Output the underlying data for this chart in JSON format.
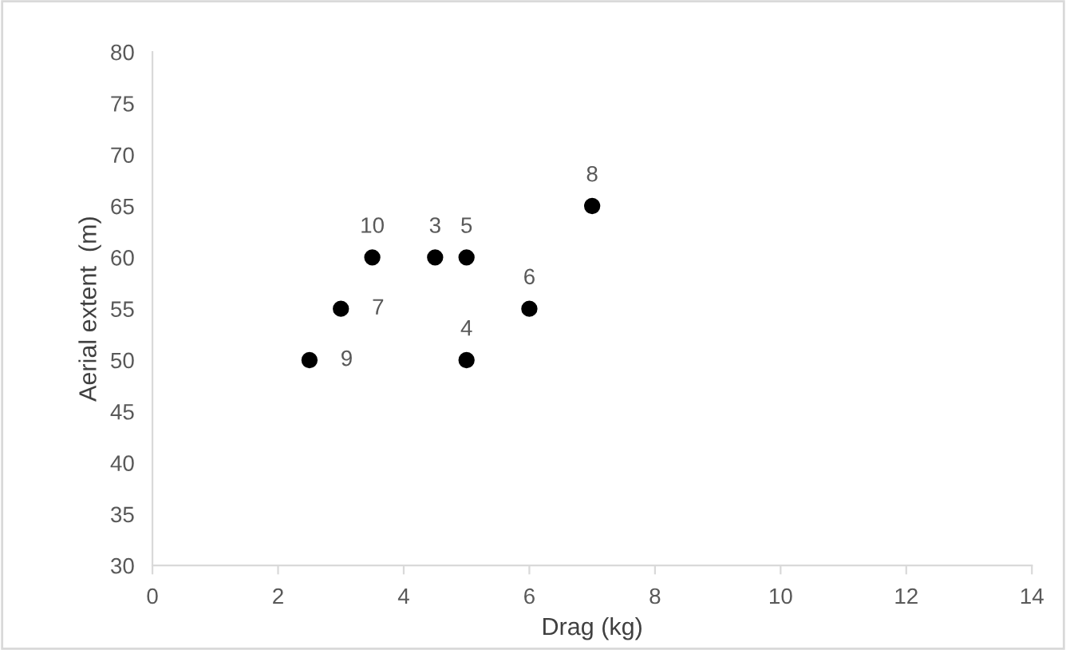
{
  "chart_data": {
    "type": "scatter",
    "xlabel": "Drag (kg)",
    "ylabel": "Aerial extent  (m)",
    "x": [
      4.5,
      5,
      5,
      6,
      3,
      7,
      2.5,
      3.5
    ],
    "values": [
      60,
      60,
      50,
      55,
      55,
      65,
      50,
      60
    ],
    "color": "#000000",
    "marker": "circle",
    "grid": false,
    "xlim": [
      0,
      14
    ],
    "xticks": [
      0,
      2,
      4,
      6,
      8,
      10,
      12,
      14
    ],
    "ylim": [
      30,
      80
    ],
    "yticks": [
      30,
      35,
      40,
      45,
      50,
      55,
      60,
      65,
      70,
      75,
      80
    ],
    "annotations": [
      {
        "text": "3",
        "x": 4.5,
        "y": 60
      },
      {
        "text": "5",
        "x": 5,
        "y": 60
      },
      {
        "text": "4",
        "x": 5,
        "y": 50
      },
      {
        "text": "6",
        "x": 6,
        "y": 55
      },
      {
        "text": "7",
        "x": 3,
        "y": 55
      },
      {
        "text": "8",
        "x": 7,
        "y": 65
      },
      {
        "text": "9",
        "x": 2.5,
        "y": 50
      },
      {
        "text": "10",
        "x": 3.5,
        "y": 60
      }
    ]
  }
}
